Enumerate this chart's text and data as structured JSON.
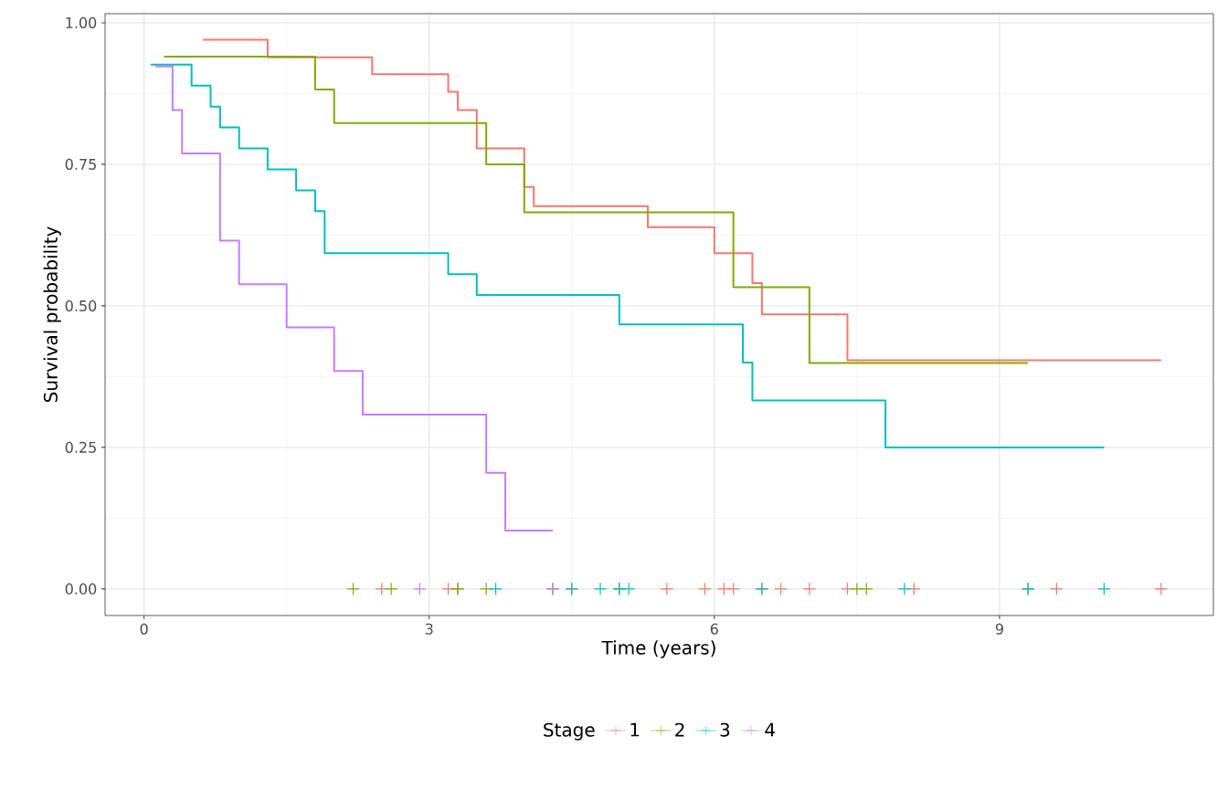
{
  "chart_data": {
    "type": "step",
    "xlabel": "Time (years)",
    "ylabel": "Survival probability",
    "legend_title": "Stage",
    "legend": "bottom",
    "grid": true,
    "xlim": [
      -0.41,
      11.25
    ],
    "ylim": [
      -0.047,
      1.016
    ],
    "xticks": [
      0,
      3,
      6,
      9
    ],
    "yticks": [
      {
        "value": 0,
        "label": "0.00"
      },
      {
        "value": 0.25,
        "label": "0.25"
      },
      {
        "value": 0.5,
        "label": "0.50"
      },
      {
        "value": 0.75,
        "label": "0.75"
      },
      {
        "value": 1,
        "label": "1.00"
      }
    ],
    "series": [
      {
        "name": "1",
        "color": "#f8766d",
        "x": [
          0.62,
          1.3,
          2.4,
          3.2,
          3.3,
          3.5,
          4.0,
          4.1,
          5.3,
          6.0,
          6.4,
          6.5,
          7.4,
          10.7
        ],
        "values": [
          0.97,
          0.939,
          0.909,
          0.878,
          0.846,
          0.778,
          0.71,
          0.676,
          0.639,
          0.593,
          0.54,
          0.485,
          0.404,
          0.404
        ]
      },
      {
        "name": "2",
        "color": "#7cae00",
        "x": [
          0.21,
          1.8,
          2.0,
          3.6,
          4.0,
          6.2,
          7.0,
          9.3
        ],
        "values": [
          0.94,
          0.882,
          0.823,
          0.75,
          0.665,
          0.533,
          0.399,
          0.399
        ]
      },
      {
        "name": "3",
        "color": "#00bfc4",
        "x": [
          0.07,
          0.5,
          0.7,
          0.8,
          1.0,
          1.3,
          1.6,
          1.8,
          1.9,
          3.2,
          3.5,
          5.0,
          6.3,
          6.4,
          7.8,
          10.1
        ],
        "values": [
          0.926,
          0.889,
          0.852,
          0.815,
          0.778,
          0.741,
          0.704,
          0.667,
          0.593,
          0.556,
          0.519,
          0.467,
          0.4,
          0.333,
          0.25,
          0.25
        ]
      },
      {
        "name": "4",
        "color": "#c77cff",
        "x": [
          0.12,
          0.3,
          0.4,
          0.8,
          1.0,
          1.5,
          2.0,
          2.3,
          3.6,
          3.8,
          4.3
        ],
        "values": [
          0.923,
          0.846,
          0.769,
          0.615,
          0.538,
          0.462,
          0.385,
          0.308,
          0.205,
          0.103,
          0.103
        ]
      },
      {
        "type": "scatter",
        "marker": "cross",
        "color": "#f8766d",
        "x": [
          2.5,
          3.2,
          3.3,
          4.5,
          5.5,
          5.9,
          6.1,
          6.2,
          6.5,
          6.7,
          7.0,
          7.4,
          8.1,
          9.6,
          10.7
        ],
        "values": [
          0,
          0,
          0,
          0,
          0,
          0,
          0,
          0,
          0,
          0,
          0,
          0,
          0,
          0,
          0
        ]
      },
      {
        "type": "scatter",
        "marker": "cross",
        "color": "#7cae00",
        "x": [
          2.2,
          2.6,
          3.3,
          3.6,
          4.3,
          5.0,
          7.5,
          7.6,
          9.3
        ],
        "values": [
          0,
          0,
          0,
          0,
          0,
          0,
          0,
          0,
          0
        ]
      },
      {
        "type": "scatter",
        "marker": "cross",
        "color": "#00bfc4",
        "x": [
          3.7,
          4.5,
          4.8,
          5.0,
          5.1,
          6.5,
          8.0,
          9.3,
          10.1
        ],
        "values": [
          0,
          0,
          0,
          0,
          0,
          0,
          0,
          0,
          0
        ]
      },
      {
        "type": "scatter",
        "marker": "cross",
        "color": "#c77cff",
        "x": [
          2.9,
          4.3
        ],
        "values": [
          0,
          0
        ]
      }
    ]
  }
}
